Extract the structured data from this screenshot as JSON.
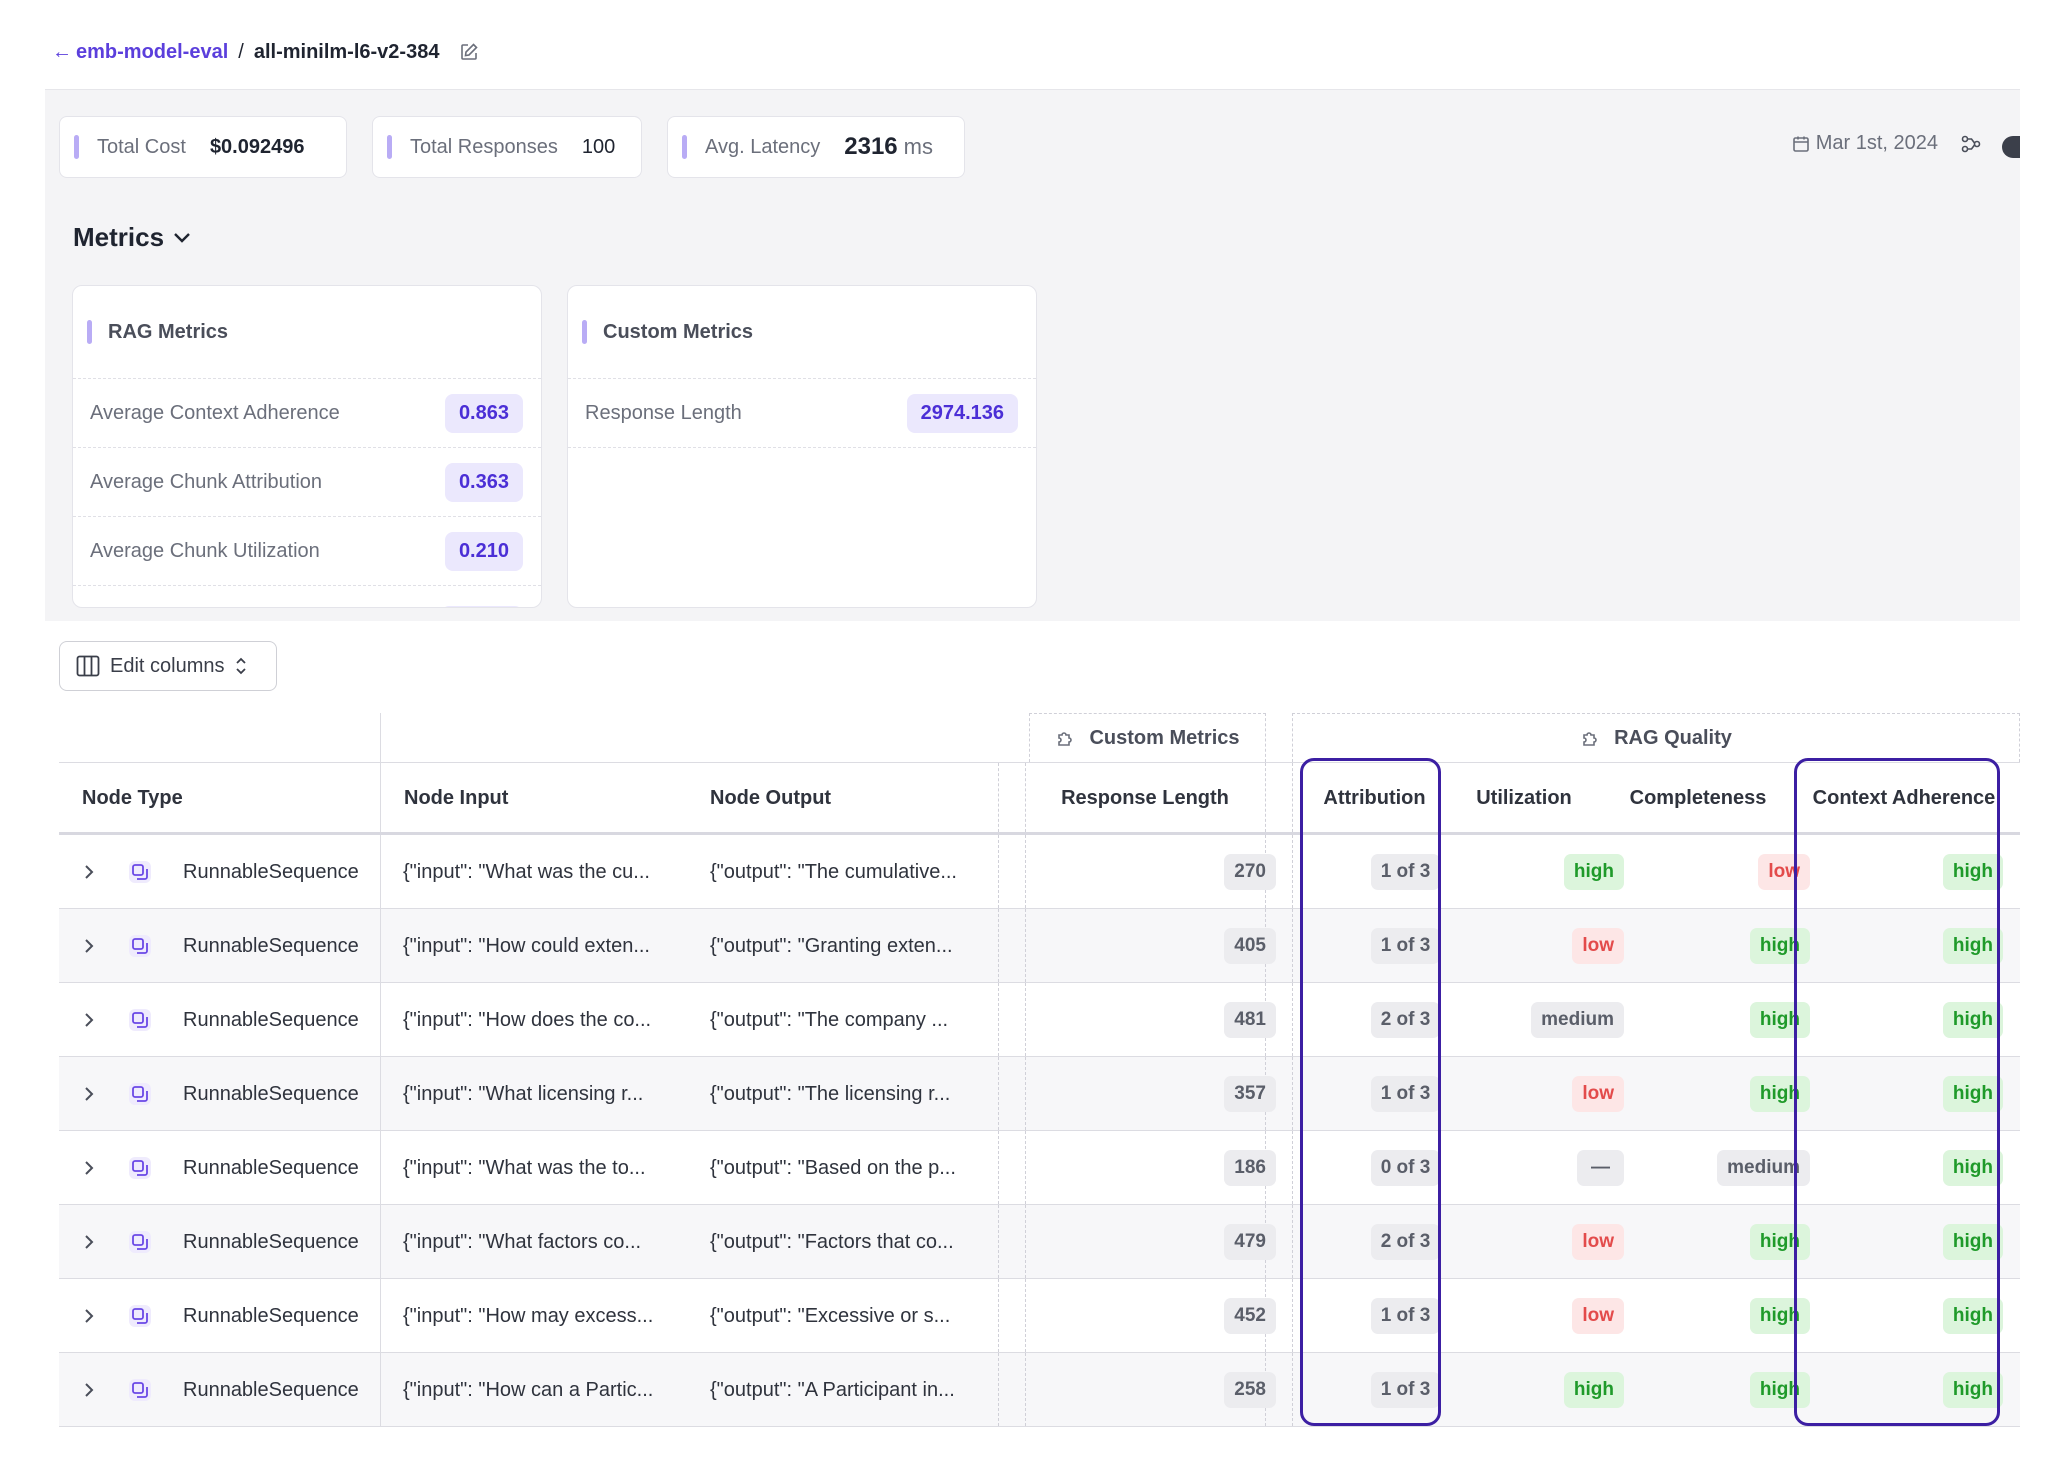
{
  "breadcrumb": {
    "back_arrow": "←",
    "project": "emb-model-eval",
    "separator": "/",
    "run": "all-minilm-l6-v2-384"
  },
  "stats": [
    {
      "label": "Total Cost",
      "value": "$0.092496",
      "unit": ""
    },
    {
      "label": "Total Responses",
      "value": "100",
      "unit": ""
    },
    {
      "label": "Avg. Latency",
      "value": "2316",
      "unit": "ms"
    }
  ],
  "toolbar": {
    "date": "Mar 1st, 2024"
  },
  "metrics_section": {
    "title": "Metrics"
  },
  "rag_metrics": {
    "title": "RAG Metrics",
    "rows": [
      {
        "label": "Average Context Adherence",
        "value": "0.863"
      },
      {
        "label": "Average Chunk Attribution",
        "value": "0.363"
      },
      {
        "label": "Average Chunk Utilization",
        "value": "0.210"
      }
    ]
  },
  "custom_metrics": {
    "title": "Custom Metrics",
    "rows": [
      {
        "label": "Response Length",
        "value": "2974.136"
      }
    ]
  },
  "edit_columns": {
    "label": "Edit columns"
  },
  "table": {
    "groups": {
      "custom": "Custom Metrics",
      "rag": "RAG Quality"
    },
    "headers": {
      "node_type": "Node Type",
      "node_input": "Node Input",
      "node_output": "Node Output",
      "response_length": "Response Length",
      "attribution": "Attribution",
      "utilization": "Utilization",
      "completeness": "Completeness",
      "context_adherence": "Context Adherence"
    },
    "rows": [
      {
        "type": "RunnableSequence",
        "input": "{\"input\": \"What was the cu...",
        "output": "{\"output\": \"The cumulative...",
        "length": "270",
        "attribution": "1 of 3",
        "utilization": "high",
        "completeness": "low",
        "adherence": "high"
      },
      {
        "type": "RunnableSequence",
        "input": "{\"input\": \"How could exten...",
        "output": "{\"output\": \"Granting exten...",
        "length": "405",
        "attribution": "1 of 3",
        "utilization": "low",
        "completeness": "high",
        "adherence": "high"
      },
      {
        "type": "RunnableSequence",
        "input": "{\"input\": \"How does the co...",
        "output": "{\"output\": \"The company ...",
        "length": "481",
        "attribution": "2 of 3",
        "utilization": "medium",
        "completeness": "high",
        "adherence": "high"
      },
      {
        "type": "RunnableSequence",
        "input": "{\"input\": \"What licensing r...",
        "output": "{\"output\": \"The licensing r...",
        "length": "357",
        "attribution": "1 of 3",
        "utilization": "low",
        "completeness": "high",
        "adherence": "high"
      },
      {
        "type": "RunnableSequence",
        "input": "{\"input\": \"What was the to...",
        "output": "{\"output\": \"Based on the p...",
        "length": "186",
        "attribution": "0 of 3",
        "utilization": "—",
        "completeness": "medium",
        "adherence": "high"
      },
      {
        "type": "RunnableSequence",
        "input": "{\"input\": \"What factors co...",
        "output": "{\"output\": \"Factors that co...",
        "length": "479",
        "attribution": "2 of 3",
        "utilization": "low",
        "completeness": "high",
        "adherence": "high"
      },
      {
        "type": "RunnableSequence",
        "input": "{\"input\": \"How may excess...",
        "output": "{\"output\": \"Excessive or s...",
        "length": "452",
        "attribution": "1 of 3",
        "utilization": "low",
        "completeness": "high",
        "adherence": "high"
      },
      {
        "type": "RunnableSequence",
        "input": "{\"input\": \"How can a Partic...",
        "output": "{\"output\": \"A Participant in...",
        "length": "258",
        "attribution": "1 of 3",
        "utilization": "high",
        "completeness": "high",
        "adherence": "high"
      }
    ]
  },
  "colors": {
    "accent": "#5b3fdc",
    "highlight_border": "#3c1fa3",
    "high": "#1f9a2a",
    "low": "#e34b4b",
    "neutral": "#5a5e69"
  }
}
